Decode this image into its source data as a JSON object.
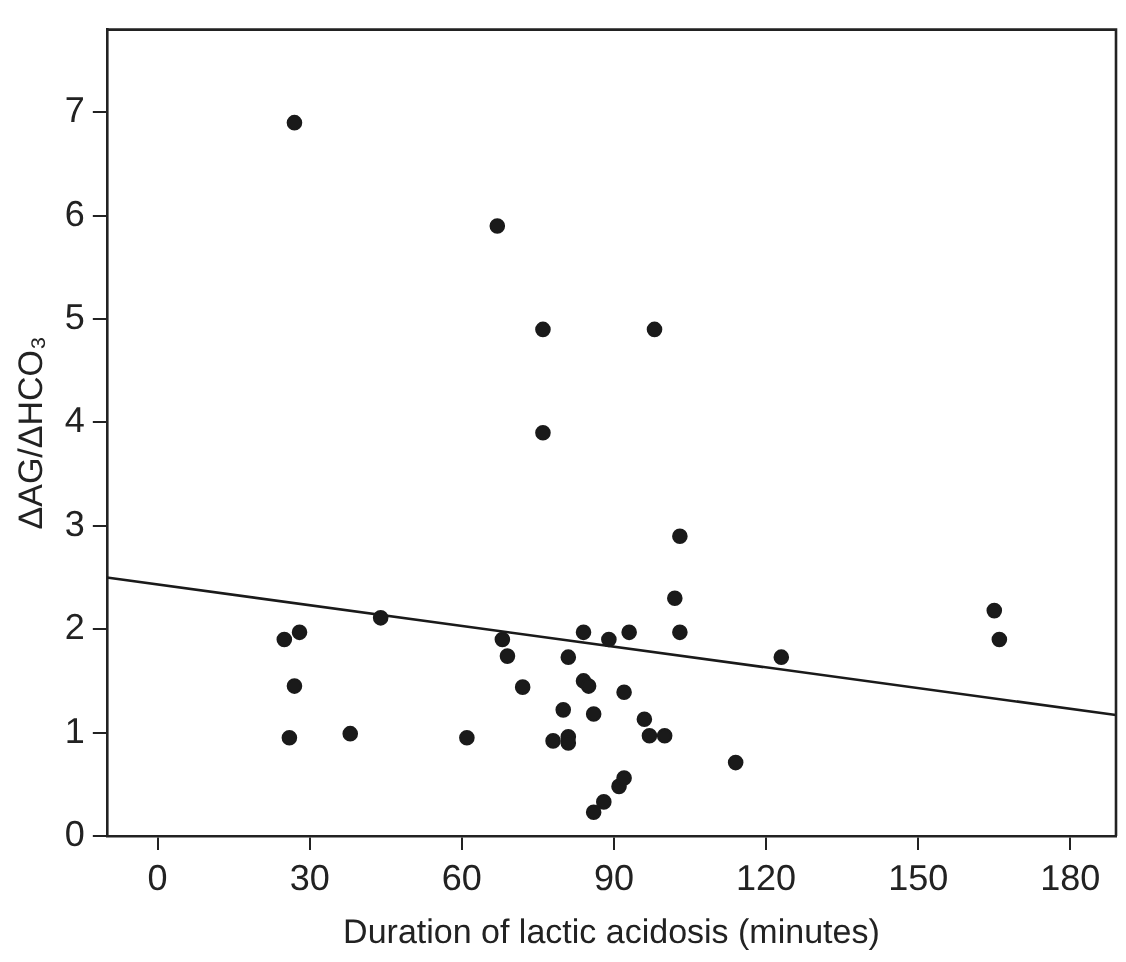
{
  "chart_data": {
    "type": "scatter",
    "xlabel": "Duration of lactic acidosis (minutes)",
    "ylabel": "ΔAG/ΔHCO₃",
    "xlim": [
      -10,
      189
    ],
    "xticks": [
      0,
      30,
      60,
      90,
      120,
      150,
      180
    ],
    "ylim": [
      0,
      7.8
    ],
    "yticks": [
      0,
      1,
      2,
      3,
      4,
      5,
      6,
      7
    ],
    "grid": false,
    "legend": false,
    "marker": "circle",
    "series": [
      {
        "type": "scatter",
        "color": "#1a1a1a",
        "x": [
          27,
          67,
          76,
          98,
          76,
          103,
          102,
          165,
          166,
          44,
          25,
          28,
          27,
          26,
          38,
          61,
          68,
          69,
          72,
          81,
          84,
          89,
          93,
          103,
          123,
          84,
          85,
          92,
          80,
          86,
          96,
          78,
          81,
          81,
          97,
          100,
          114,
          91,
          92,
          88,
          86
        ],
        "values": [
          6.9,
          5.9,
          4.9,
          4.9,
          3.9,
          2.9,
          2.3,
          2.18,
          1.9,
          2.11,
          1.9,
          1.97,
          1.45,
          0.95,
          0.99,
          0.95,
          1.9,
          1.74,
          1.44,
          1.73,
          1.97,
          1.9,
          1.97,
          1.97,
          1.73,
          1.5,
          1.45,
          1.39,
          1.22,
          1.18,
          1.13,
          0.92,
          0.96,
          0.9,
          0.97,
          0.97,
          0.71,
          0.48,
          0.56,
          0.33,
          0.23
        ]
      },
      {
        "type": "line",
        "color": "#1a1a1a",
        "marker": "none",
        "line_style": "solid",
        "x": [
          -10,
          189
        ],
        "values": [
          2.5,
          1.17
        ]
      }
    ]
  }
}
